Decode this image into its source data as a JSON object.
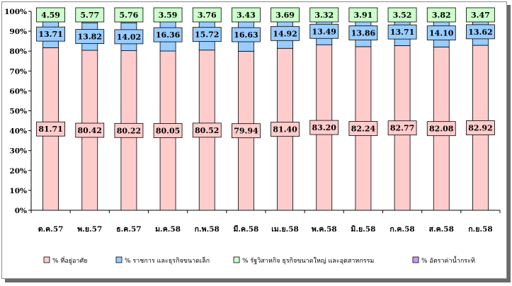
{
  "chart_data": {
    "type": "bar",
    "stacked": true,
    "percent_stacked": true,
    "categories": [
      "ต.ค.57",
      "พ.ย.57",
      "ธ.ค.57",
      "ม.ค.58",
      "ก.พ.58",
      "มี.ค.58",
      "เม.ย.58",
      "พ.ค.58",
      "มิ.ย.58",
      "ก.ค.58",
      "ส.ค.58",
      "ก.ย.58"
    ],
    "series": [
      {
        "name": "% ที่อยู่อาศัย",
        "color": "#ffcccc",
        "values": [
          81.71,
          80.42,
          80.22,
          80.05,
          80.52,
          79.94,
          81.4,
          83.2,
          82.24,
          82.77,
          82.08,
          82.92
        ]
      },
      {
        "name": "% ราชการ และธุรกิจขนาดเล็ก",
        "color": "#99ccff",
        "values": [
          13.71,
          13.82,
          14.02,
          16.36,
          15.72,
          16.63,
          14.92,
          13.49,
          13.86,
          13.71,
          14.1,
          13.62
        ]
      },
      {
        "name": "% รัฐวิสาหกิจ ธุรกิจขนาดใหญ่ และอุตสาหกรรม",
        "color": "#ccffcc",
        "values": [
          4.59,
          5.77,
          5.76,
          3.59,
          3.76,
          3.43,
          3.69,
          3.32,
          3.91,
          3.52,
          3.82,
          3.47
        ]
      },
      {
        "name": "% อัตราค่าน้ำกระทิ",
        "color": "#cc99ff",
        "values": [
          0,
          0,
          0,
          0,
          0,
          0,
          0,
          0,
          0,
          0,
          0,
          0
        ]
      }
    ],
    "y_ticks": [
      "0%",
      "10%",
      "20%",
      "30%",
      "40%",
      "50%",
      "60%",
      "70%",
      "80%",
      "90%",
      "100%"
    ],
    "ylim": [
      0,
      100
    ],
    "legend_position": "bottom"
  }
}
